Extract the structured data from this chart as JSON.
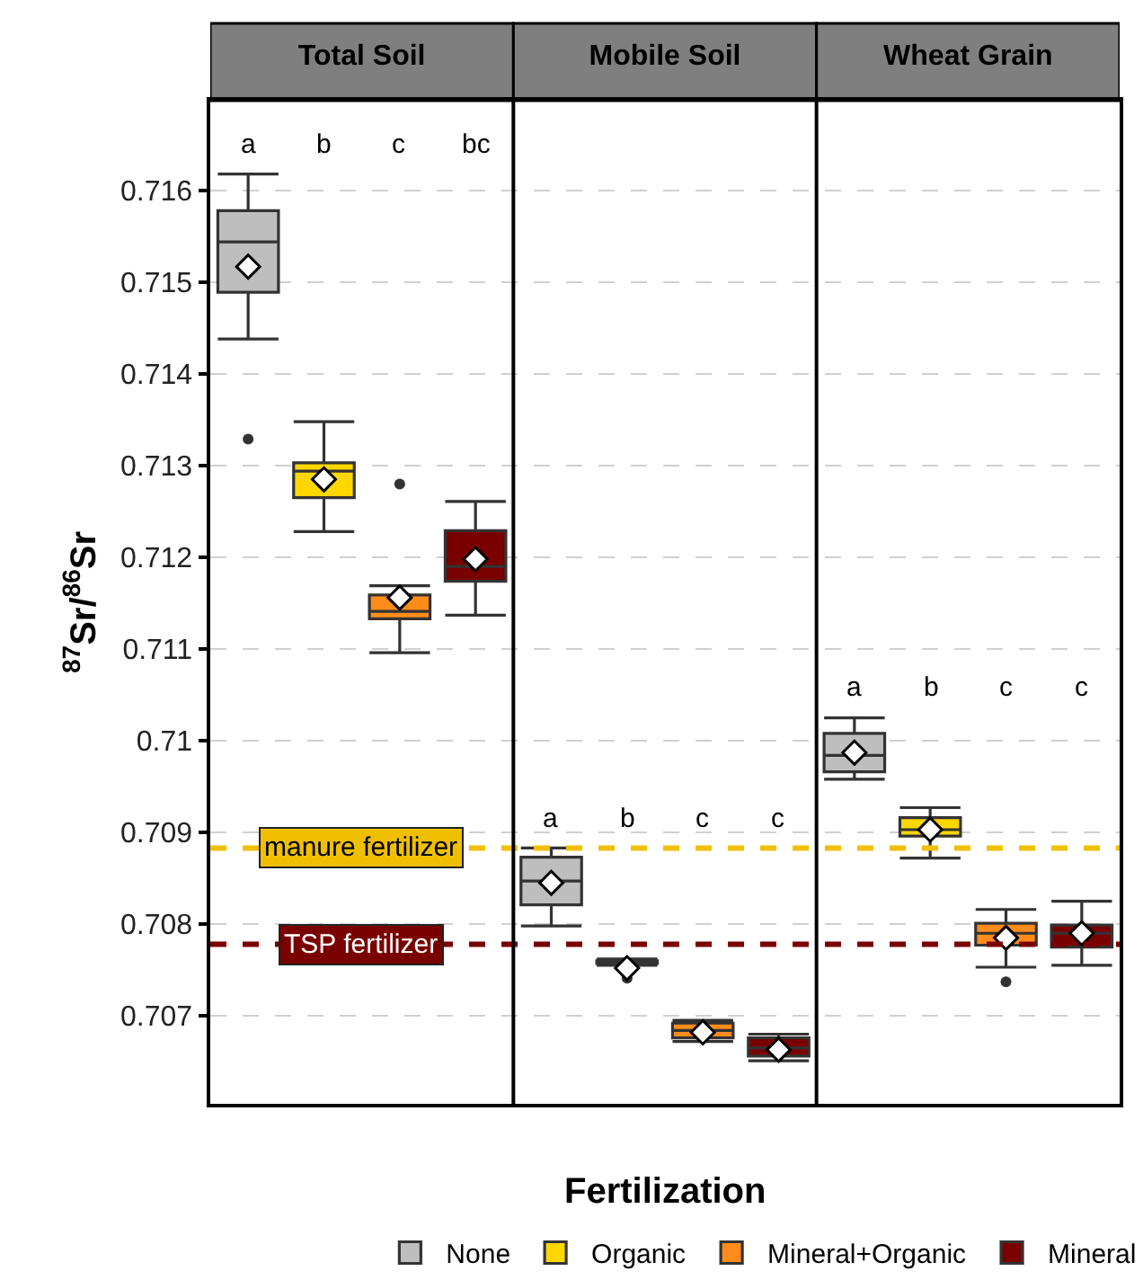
{
  "chart_data": {
    "type": "box",
    "xlabel": "Fertilization",
    "ylabel": "$^{87}$Sr/$^{86}$Sr",
    "categories": [
      "Total Soil",
      "Mobile Soil",
      "Wheat Grain"
    ],
    "ylim": [
      0.70604,
      0.71698
    ],
    "yticks": [
      0.707,
      0.708,
      0.709,
      0.71,
      0.711,
      0.712,
      0.713,
      0.714,
      0.715,
      0.716
    ],
    "grid": "y",
    "legend": "bottom",
    "marker": "diamond",
    "series": [
      {
        "name": "None",
        "color": "#bebebe",
        "boxes": [
          {
            "low": 0.71438,
            "q1": 0.71489,
            "median": 0.71544,
            "q3": 0.71578,
            "high": 0.71618,
            "mean": 0.71517,
            "outliers": [
              0.71329
            ]
          },
          {
            "low": 0.70798,
            "q1": 0.70821,
            "median": 0.70847,
            "q3": 0.70873,
            "high": 0.70883,
            "mean": 0.70845
          },
          {
            "low": 0.70958,
            "q1": 0.70966,
            "median": 0.70984,
            "q3": 0.71008,
            "high": 0.71025,
            "mean": 0.70987
          }
        ]
      },
      {
        "name": "Organic",
        "color": "#ffd700",
        "boxes": [
          {
            "low": 0.71228,
            "q1": 0.71265,
            "median": 0.71294,
            "q3": 0.71303,
            "high": 0.71348,
            "mean": 0.71285
          },
          {
            "low": 0.70755,
            "q1": 0.70757,
            "median": 0.70758,
            "q3": 0.7076,
            "high": 0.70762,
            "mean": 0.70752,
            "outliers": [
              0.70741
            ]
          },
          {
            "low": 0.70872,
            "q1": 0.70896,
            "median": 0.70903,
            "q3": 0.70916,
            "high": 0.70927,
            "mean": 0.70903
          }
        ]
      },
      {
        "name": "Mineral+Organic",
        "color": "#ff8c1a",
        "boxes": [
          {
            "low": 0.71096,
            "q1": 0.71133,
            "median": 0.71141,
            "q3": 0.71159,
            "high": 0.71169,
            "mean": 0.71156,
            "outliers": [
              0.7128
            ]
          },
          {
            "low": 0.70672,
            "q1": 0.70676,
            "median": 0.70684,
            "q3": 0.70692,
            "high": 0.70695,
            "mean": 0.70682
          },
          {
            "low": 0.70753,
            "q1": 0.70777,
            "median": 0.7079,
            "q3": 0.70801,
            "high": 0.70816,
            "mean": 0.70785,
            "outliers": [
              0.70737
            ]
          }
        ]
      },
      {
        "name": "Mineral",
        "color": "#7a0000",
        "boxes": [
          {
            "low": 0.71137,
            "q1": 0.71174,
            "median": 0.7119,
            "q3": 0.71229,
            "high": 0.71261,
            "mean": 0.71198
          },
          {
            "low": 0.70651,
            "q1": 0.70656,
            "median": 0.70665,
            "q3": 0.70676,
            "high": 0.7068,
            "mean": 0.70663
          },
          {
            "low": 0.70755,
            "q1": 0.70775,
            "median": 0.7079,
            "q3": 0.70799,
            "high": 0.70825,
            "mean": 0.7079
          }
        ]
      }
    ],
    "annotations": [
      "a",
      "b",
      "c",
      "bc",
      "a",
      "b",
      "c",
      "c",
      "a",
      "b",
      "c",
      "c"
    ],
    "ref_lines": [
      {
        "axis": "y",
        "value": 0.70883,
        "label": "manure fertilizer",
        "color": "#f0c000",
        "line_style": "dashed"
      },
      {
        "axis": "y",
        "value": 0.70778,
        "label": "TSP fertilizer",
        "color": "#7a0000",
        "line_style": "dashed"
      }
    ]
  }
}
